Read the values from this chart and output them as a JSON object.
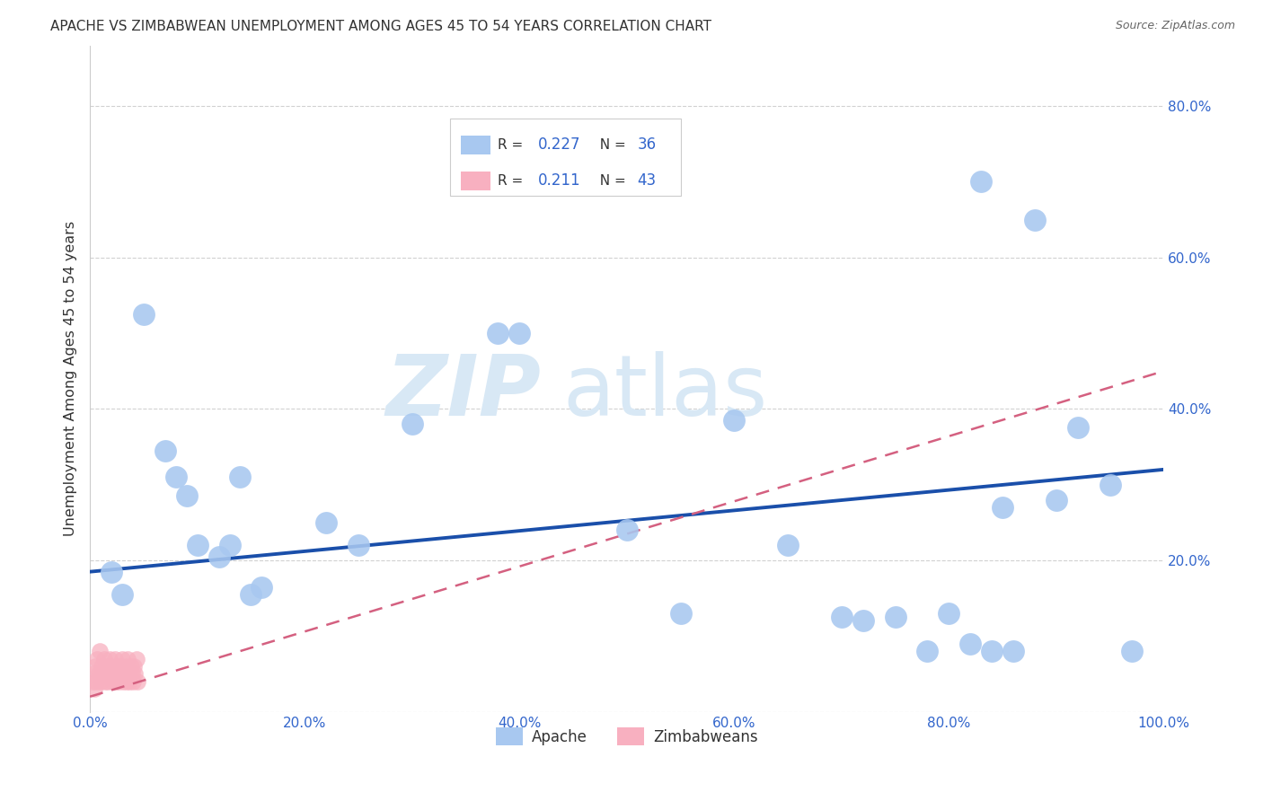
{
  "title": "APACHE VS ZIMBABWEAN UNEMPLOYMENT AMONG AGES 45 TO 54 YEARS CORRELATION CHART",
  "source": "Source: ZipAtlas.com",
  "ylabel": "Unemployment Among Ages 45 to 54 years",
  "apache_R": 0.227,
  "apache_N": 36,
  "zimbabwean_R": 0.211,
  "zimbabwean_N": 43,
  "apache_color": "#a8c8f0",
  "apache_line_color": "#1a4faa",
  "zimbabwean_color": "#f8b0c0",
  "zimbabwean_line_color": "#d46080",
  "watermark_zip": "ZIP",
  "watermark_atlas": "atlas",
  "apache_x": [
    0.02,
    0.03,
    0.05,
    0.07,
    0.08,
    0.09,
    0.1,
    0.12,
    0.13,
    0.14,
    0.16,
    0.22,
    0.3,
    0.38,
    0.4,
    0.6,
    0.65,
    0.7,
    0.75,
    0.78,
    0.8,
    0.82,
    0.84,
    0.86,
    0.88,
    0.9,
    0.92,
    0.95,
    0.97,
    0.15,
    0.25,
    0.5,
    0.55,
    0.72,
    0.83,
    0.85
  ],
  "apache_y": [
    0.185,
    0.155,
    0.525,
    0.345,
    0.31,
    0.285,
    0.22,
    0.205,
    0.22,
    0.31,
    0.165,
    0.25,
    0.38,
    0.5,
    0.5,
    0.385,
    0.22,
    0.125,
    0.125,
    0.08,
    0.13,
    0.09,
    0.08,
    0.08,
    0.65,
    0.28,
    0.375,
    0.3,
    0.08,
    0.155,
    0.22,
    0.24,
    0.13,
    0.12,
    0.7,
    0.27
  ],
  "zimbabwean_x": [
    0.002,
    0.003,
    0.004,
    0.005,
    0.006,
    0.007,
    0.008,
    0.009,
    0.01,
    0.011,
    0.012,
    0.013,
    0.014,
    0.015,
    0.016,
    0.017,
    0.018,
    0.019,
    0.02,
    0.021,
    0.022,
    0.023,
    0.024,
    0.025,
    0.026,
    0.027,
    0.028,
    0.029,
    0.03,
    0.031,
    0.032,
    0.033,
    0.034,
    0.035,
    0.036,
    0.037,
    0.038,
    0.039,
    0.04,
    0.041,
    0.042,
    0.043,
    0.044
  ],
  "zimbabwean_y": [
    0.04,
    0.05,
    0.03,
    0.06,
    0.04,
    0.07,
    0.05,
    0.08,
    0.04,
    0.06,
    0.05,
    0.07,
    0.04,
    0.06,
    0.05,
    0.04,
    0.07,
    0.05,
    0.06,
    0.04,
    0.05,
    0.07,
    0.04,
    0.06,
    0.05,
    0.04,
    0.06,
    0.05,
    0.07,
    0.04,
    0.05,
    0.06,
    0.04,
    0.07,
    0.05,
    0.04,
    0.06,
    0.05,
    0.04,
    0.06,
    0.05,
    0.07,
    0.04
  ],
  "apache_line_x0": 0.0,
  "apache_line_y0": 0.185,
  "apache_line_x1": 1.0,
  "apache_line_y1": 0.32,
  "zimbabwean_line_x0": 0.0,
  "zimbabwean_line_y0": 0.02,
  "zimbabwean_line_x1": 1.0,
  "zimbabwean_line_y1": 0.45,
  "xlim": [
    0.0,
    1.0
  ],
  "ylim": [
    0.0,
    0.88
  ],
  "xticks": [
    0.0,
    0.2,
    0.4,
    0.6,
    0.8,
    1.0
  ],
  "yticks": [
    0.0,
    0.2,
    0.4,
    0.6,
    0.8
  ],
  "xtick_labels": [
    "0.0%",
    "20.0%",
    "40.0%",
    "60.0%",
    "80.0%",
    "100.0%"
  ],
  "ytick_labels_right": [
    "",
    "20.0%",
    "40.0%",
    "60.0%",
    "80.0%"
  ]
}
